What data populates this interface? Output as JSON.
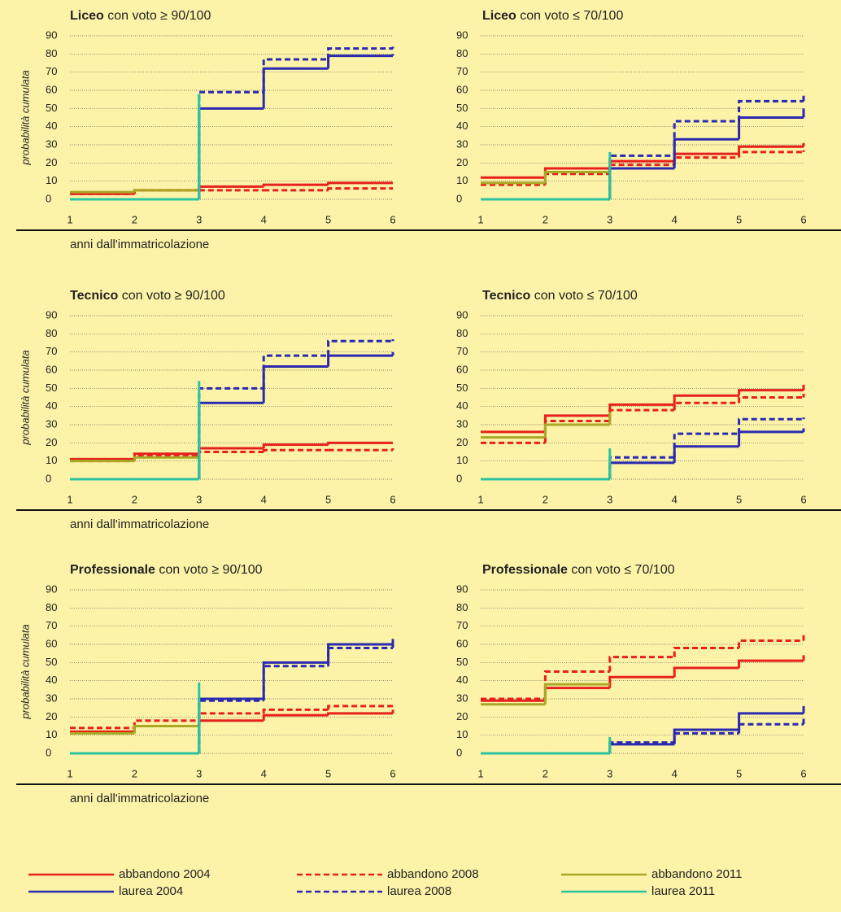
{
  "chart_data": [
    {
      "type": "step",
      "title": {
        "bold": "Liceo",
        "rest": "con voto ≥ 90/100"
      },
      "ylabel": "probabilità cumulata",
      "xlabel": "anni dall'immatricolazione",
      "x": [
        1,
        2,
        3,
        4,
        5,
        6
      ],
      "xlim": [
        1,
        6
      ],
      "xticks": [
        1,
        2,
        3,
        4,
        5,
        6
      ],
      "ylim": [
        0,
        90
      ],
      "yticks": [
        0,
        10,
        20,
        30,
        40,
        50,
        60,
        70,
        80,
        90
      ],
      "grid": true,
      "series": [
        {
          "name": "abbandono 2004",
          "color": "#e8201c",
          "dash": false,
          "values": [
            3,
            5,
            7,
            8,
            9,
            9
          ]
        },
        {
          "name": "abbandono 2008",
          "color": "#e8201c",
          "dash": true,
          "values": [
            3,
            5,
            5,
            5,
            6,
            6
          ]
        },
        {
          "name": "abbandono 2011",
          "color": "#a9a825",
          "dash": false,
          "values": [
            4,
            5,
            5,
            null,
            null,
            null
          ]
        },
        {
          "name": "laurea 2004",
          "color": "#2a2ab0",
          "dash": false,
          "values": [
            0,
            0,
            50,
            72,
            79,
            80
          ]
        },
        {
          "name": "laurea 2008",
          "color": "#2a2ab0",
          "dash": true,
          "values": [
            0,
            0,
            59,
            77,
            83,
            84
          ]
        },
        {
          "name": "laurea 2011",
          "color": "#2cc4a0",
          "dash": false,
          "values": [
            0,
            0,
            58,
            null,
            null,
            null
          ]
        }
      ]
    },
    {
      "type": "step",
      "title": {
        "bold": "Liceo",
        "rest": "con voto ≤ 70/100"
      },
      "x": [
        1,
        2,
        3,
        4,
        5,
        6
      ],
      "xlim": [
        1,
        6
      ],
      "xticks": [
        1,
        2,
        3,
        4,
        5,
        6
      ],
      "ylim": [
        0,
        90
      ],
      "yticks": [
        0,
        10,
        20,
        30,
        40,
        50,
        60,
        70,
        80,
        90
      ],
      "grid": true,
      "series": [
        {
          "name": "abbandono 2004",
          "color": "#e8201c",
          "dash": false,
          "values": [
            12,
            17,
            21,
            25,
            29,
            31
          ]
        },
        {
          "name": "abbandono 2008",
          "color": "#e8201c",
          "dash": true,
          "values": [
            8,
            14,
            19,
            23,
            26,
            27
          ]
        },
        {
          "name": "abbandono 2011",
          "color": "#a9a825",
          "dash": false,
          "values": [
            9,
            15,
            20,
            null,
            null,
            null
          ]
        },
        {
          "name": "laurea 2004",
          "color": "#2a2ab0",
          "dash": false,
          "values": [
            0,
            0,
            17,
            33,
            45,
            50
          ]
        },
        {
          "name": "laurea 2008",
          "color": "#2a2ab0",
          "dash": true,
          "values": [
            0,
            0,
            24,
            43,
            54,
            57
          ]
        },
        {
          "name": "laurea 2011",
          "color": "#2cc4a0",
          "dash": false,
          "values": [
            0,
            0,
            26,
            null,
            null,
            null
          ]
        }
      ]
    },
    {
      "type": "step",
      "title": {
        "bold": "Tecnico",
        "rest": "con voto ≥ 90/100"
      },
      "ylabel": "probabilità cumulata",
      "xlabel": "anni dall'immatricolazione",
      "x": [
        1,
        2,
        3,
        4,
        5,
        6
      ],
      "xlim": [
        1,
        6
      ],
      "xticks": [
        1,
        2,
        3,
        4,
        5,
        6
      ],
      "ylim": [
        0,
        90
      ],
      "yticks": [
        0,
        10,
        20,
        30,
        40,
        50,
        60,
        70,
        80,
        90
      ],
      "grid": true,
      "series": [
        {
          "name": "abbandono 2004",
          "color": "#e8201c",
          "dash": false,
          "values": [
            11,
            14,
            17,
            19,
            20,
            20
          ]
        },
        {
          "name": "abbandono 2008",
          "color": "#e8201c",
          "dash": true,
          "values": [
            10,
            13,
            15,
            16,
            16,
            17
          ]
        },
        {
          "name": "abbandono 2011",
          "color": "#a9a825",
          "dash": false,
          "values": [
            10,
            12,
            13,
            null,
            null,
            null
          ]
        },
        {
          "name": "laurea 2004",
          "color": "#2a2ab0",
          "dash": false,
          "values": [
            0,
            0,
            42,
            62,
            68,
            70
          ]
        },
        {
          "name": "laurea 2008",
          "color": "#2a2ab0",
          "dash": true,
          "values": [
            0,
            0,
            50,
            68,
            76,
            77
          ]
        },
        {
          "name": "laurea 2011",
          "color": "#2cc4a0",
          "dash": false,
          "values": [
            0,
            0,
            54,
            null,
            null,
            null
          ]
        }
      ]
    },
    {
      "type": "step",
      "title": {
        "bold": "Tecnico",
        "rest": "con voto ≤ 70/100"
      },
      "x": [
        1,
        2,
        3,
        4,
        5,
        6
      ],
      "xlim": [
        1,
        6
      ],
      "xticks": [
        1,
        2,
        3,
        4,
        5,
        6
      ],
      "ylim": [
        0,
        90
      ],
      "yticks": [
        0,
        10,
        20,
        30,
        40,
        50,
        60,
        70,
        80,
        90
      ],
      "grid": true,
      "series": [
        {
          "name": "abbandono 2004",
          "color": "#e8201c",
          "dash": false,
          "values": [
            26,
            35,
            41,
            46,
            49,
            52
          ]
        },
        {
          "name": "abbandono 2008",
          "color": "#e8201c",
          "dash": true,
          "values": [
            20,
            32,
            38,
            42,
            45,
            47
          ]
        },
        {
          "name": "abbandono 2011",
          "color": "#a9a825",
          "dash": false,
          "values": [
            23,
            30,
            37,
            null,
            null,
            null
          ]
        },
        {
          "name": "laurea 2004",
          "color": "#2a2ab0",
          "dash": false,
          "values": [
            0,
            0,
            9,
            18,
            26,
            28
          ]
        },
        {
          "name": "laurea 2008",
          "color": "#2a2ab0",
          "dash": true,
          "values": [
            0,
            0,
            12,
            25,
            33,
            34
          ]
        },
        {
          "name": "laurea 2011",
          "color": "#2cc4a0",
          "dash": false,
          "values": [
            0,
            0,
            17,
            null,
            null,
            null
          ]
        }
      ]
    },
    {
      "type": "step",
      "title": {
        "bold": "Professionale",
        "rest": "con voto ≥ 90/100"
      },
      "ylabel": "probabilità cumulata",
      "xlabel": "anni dall'immatricolazione",
      "x": [
        1,
        2,
        3,
        4,
        5,
        6
      ],
      "xlim": [
        1,
        6
      ],
      "xticks": [
        1,
        2,
        3,
        4,
        5,
        6
      ],
      "ylim": [
        0,
        90
      ],
      "yticks": [
        0,
        10,
        20,
        30,
        40,
        50,
        60,
        70,
        80,
        90
      ],
      "grid": true,
      "series": [
        {
          "name": "abbandono 2004",
          "color": "#e8201c",
          "dash": false,
          "values": [
            12,
            15,
            18,
            21,
            22,
            24
          ]
        },
        {
          "name": "abbandono 2008",
          "color": "#e8201c",
          "dash": true,
          "values": [
            14,
            18,
            22,
            24,
            26,
            26
          ]
        },
        {
          "name": "abbandono 2011",
          "color": "#a9a825",
          "dash": false,
          "values": [
            11,
            15,
            16,
            null,
            null,
            null
          ]
        },
        {
          "name": "laurea 2004",
          "color": "#2a2ab0",
          "dash": false,
          "values": [
            0,
            0,
            30,
            50,
            60,
            63
          ]
        },
        {
          "name": "laurea 2008",
          "color": "#2a2ab0",
          "dash": true,
          "values": [
            0,
            0,
            29,
            48,
            58,
            60
          ]
        },
        {
          "name": "laurea 2011",
          "color": "#2cc4a0",
          "dash": false,
          "values": [
            0,
            0,
            39,
            null,
            null,
            null
          ]
        }
      ]
    },
    {
      "type": "step",
      "title": {
        "bold": "Professionale",
        "rest": "con voto ≤ 70/100"
      },
      "x": [
        1,
        2,
        3,
        4,
        5,
        6
      ],
      "xlim": [
        1,
        6
      ],
      "xticks": [
        1,
        2,
        3,
        4,
        5,
        6
      ],
      "ylim": [
        0,
        90
      ],
      "yticks": [
        0,
        10,
        20,
        30,
        40,
        50,
        60,
        70,
        80,
        90
      ],
      "grid": true,
      "series": [
        {
          "name": "abbandono 2004",
          "color": "#e8201c",
          "dash": false,
          "values": [
            29,
            36,
            42,
            47,
            51,
            54
          ]
        },
        {
          "name": "abbandono 2008",
          "color": "#e8201c",
          "dash": true,
          "values": [
            30,
            45,
            53,
            58,
            62,
            65
          ]
        },
        {
          "name": "abbandono 2011",
          "color": "#a9a825",
          "dash": false,
          "values": [
            27,
            38,
            38,
            null,
            null,
            null
          ]
        },
        {
          "name": "laurea 2004",
          "color": "#2a2ab0",
          "dash": false,
          "values": [
            0,
            0,
            5,
            13,
            22,
            26
          ]
        },
        {
          "name": "laurea 2008",
          "color": "#2a2ab0",
          "dash": true,
          "values": [
            0,
            0,
            6,
            11,
            16,
            19
          ]
        },
        {
          "name": "laurea 2011",
          "color": "#2cc4a0",
          "dash": false,
          "values": [
            0,
            0,
            9,
            null,
            null,
            null
          ]
        }
      ]
    }
  ]
}
